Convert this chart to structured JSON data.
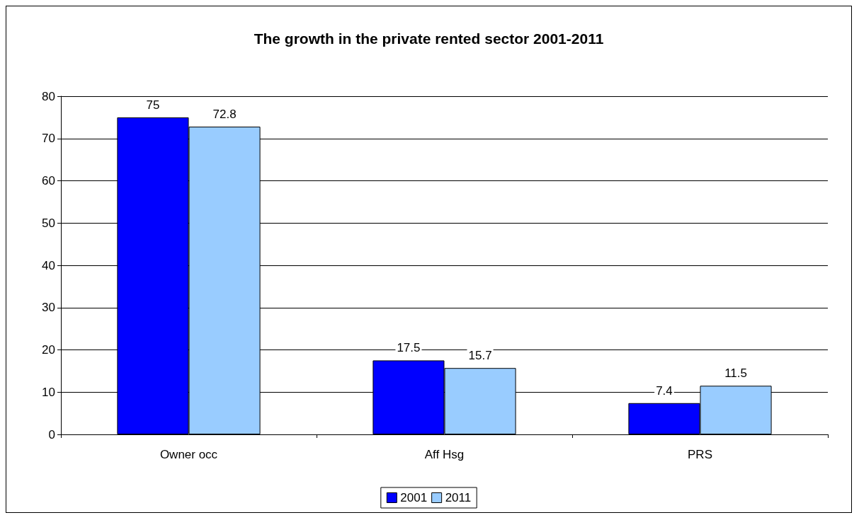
{
  "chart_data": {
    "type": "bar",
    "title": "The growth in the private rented sector 2001-2011",
    "categories": [
      "Owner occ",
      "Aff Hsg",
      "PRS"
    ],
    "series": [
      {
        "name": "2001",
        "color": "#0000ff",
        "values": [
          75,
          17.5,
          7.4
        ]
      },
      {
        "name": "2011",
        "color": "#99ccff",
        "values": [
          72.8,
          15.7,
          11.5
        ]
      }
    ],
    "ylim": [
      0,
      80
    ],
    "yticks": [
      0,
      10,
      20,
      30,
      40,
      50,
      60,
      70,
      80
    ],
    "grid": "y",
    "legend": "bottom",
    "data_labels": true
  }
}
